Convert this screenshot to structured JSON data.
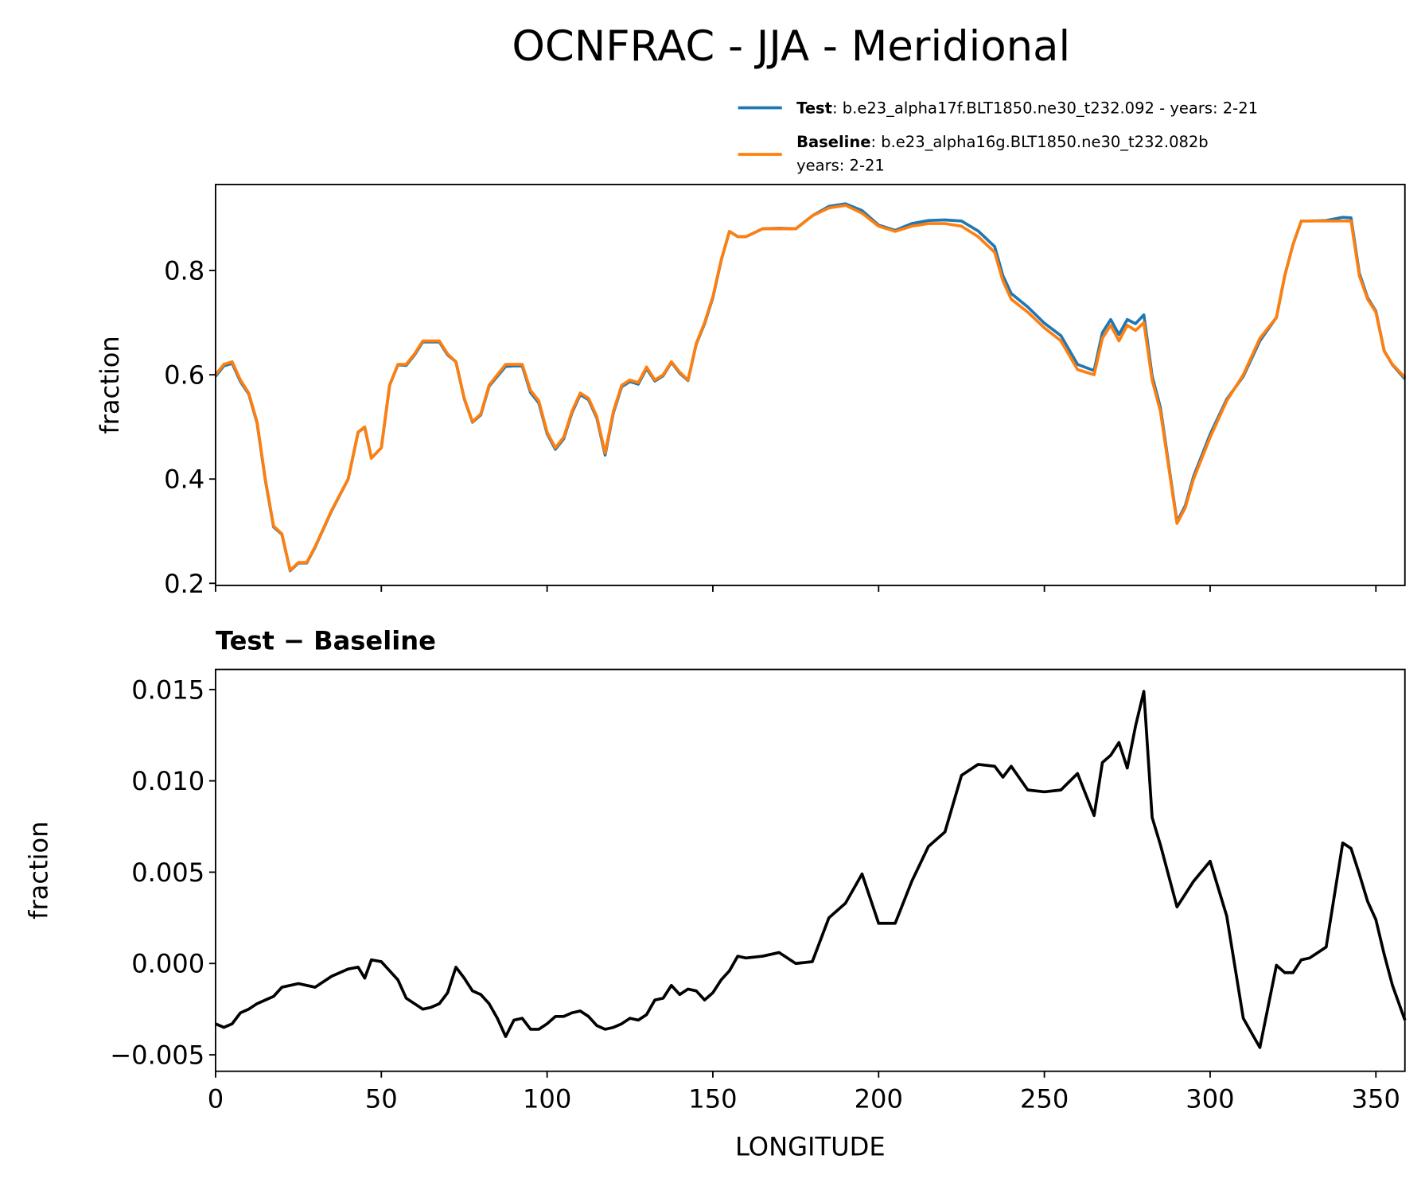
{
  "title": "OCNFRAC - JJA - Meridional",
  "chart_data": [
    {
      "type": "line",
      "ylabel": "fraction",
      "grid": false,
      "xlim": [
        0,
        358.75
      ],
      "xticks": [
        0,
        50,
        100,
        150,
        200,
        250,
        300,
        350
      ],
      "ylim": [
        0.196,
        0.965
      ],
      "yticks": [
        0.2,
        0.4,
        0.6,
        0.8
      ],
      "x": [
        0,
        2.5,
        5,
        7.5,
        10,
        12.5,
        15,
        17.5,
        20,
        22.5,
        25,
        27.5,
        30,
        35,
        40,
        43,
        45,
        47,
        50,
        52.5,
        55,
        57.5,
        60,
        62.5,
        65,
        67.5,
        70,
        72.5,
        75,
        77.5,
        80,
        82.5,
        85,
        87.5,
        90,
        92.5,
        95,
        97.5,
        100,
        102.5,
        105,
        107.5,
        110,
        112.5,
        115,
        117.5,
        120,
        122.5,
        125,
        127.5,
        130,
        132.5,
        135,
        137.5,
        140,
        142.5,
        145,
        147.5,
        150,
        152.5,
        155,
        157.5,
        160,
        165,
        170,
        175,
        180,
        185,
        190,
        195,
        200,
        205,
        210,
        215,
        220,
        225,
        230,
        235,
        237.5,
        240,
        245,
        250,
        255,
        260,
        265,
        267.5,
        270,
        272.5,
        275,
        277.5,
        280,
        282.5,
        285,
        290,
        292.5,
        295,
        300,
        305,
        310,
        315,
        320,
        322.5,
        325,
        327.5,
        330,
        335,
        340,
        342.5,
        345,
        347.5,
        350,
        352.5,
        355,
        358.75
      ],
      "series": [
        {
          "name": "Test",
          "description": [
            ": b.e23_alpha17f.BLT1850.ne30_t232.092 - years: 2-21"
          ],
          "color": "#1f77b4",
          "values": [
            0.597,
            0.617,
            0.622,
            0.587,
            0.563,
            0.508,
            0.398,
            0.308,
            0.294,
            0.224,
            0.239,
            0.239,
            0.269,
            0.339,
            0.4,
            0.49,
            0.499,
            0.44,
            0.46,
            0.58,
            0.619,
            0.618,
            0.638,
            0.663,
            0.663,
            0.663,
            0.638,
            0.625,
            0.554,
            0.509,
            0.523,
            0.578,
            0.597,
            0.616,
            0.617,
            0.617,
            0.566,
            0.546,
            0.487,
            0.457,
            0.477,
            0.527,
            0.562,
            0.552,
            0.517,
            0.446,
            0.527,
            0.577,
            0.587,
            0.582,
            0.612,
            0.588,
            0.598,
            0.624,
            0.603,
            0.589,
            0.659,
            0.698,
            0.748,
            0.819,
            0.875,
            0.865,
            0.865,
            0.88,
            0.881,
            0.88,
            0.905,
            0.923,
            0.928,
            0.915,
            0.887,
            0.877,
            0.89,
            0.896,
            0.897,
            0.895,
            0.876,
            0.846,
            0.79,
            0.756,
            0.73,
            0.699,
            0.675,
            0.62,
            0.608,
            0.681,
            0.706,
            0.677,
            0.706,
            0.698,
            0.715,
            0.598,
            0.537,
            0.318,
            0.349,
            0.405,
            0.486,
            0.553,
            0.597,
            0.665,
            0.71,
            0.79,
            0.85,
            0.895,
            0.895,
            0.896,
            0.902,
            0.901,
            0.795,
            0.748,
            0.722,
            0.646,
            0.619,
            0.592
          ]
        },
        {
          "name": "Baseline",
          "description": [
            ": b.e23_alpha16g.BLT1850.ne30_t232.082b",
            "years: 2-21"
          ],
          "color": "#ff7f0e",
          "values": [
            0.6,
            0.62,
            0.625,
            0.59,
            0.565,
            0.51,
            0.4,
            0.31,
            0.295,
            0.225,
            0.24,
            0.24,
            0.27,
            0.34,
            0.4,
            0.49,
            0.5,
            0.44,
            0.46,
            0.58,
            0.62,
            0.62,
            0.64,
            0.665,
            0.665,
            0.665,
            0.64,
            0.625,
            0.555,
            0.51,
            0.525,
            0.58,
            0.6,
            0.62,
            0.62,
            0.62,
            0.57,
            0.55,
            0.49,
            0.46,
            0.48,
            0.53,
            0.565,
            0.555,
            0.52,
            0.45,
            0.53,
            0.58,
            0.59,
            0.585,
            0.615,
            0.59,
            0.6,
            0.625,
            0.605,
            0.59,
            0.66,
            0.7,
            0.75,
            0.82,
            0.875,
            0.865,
            0.865,
            0.88,
            0.88,
            0.88,
            0.905,
            0.92,
            0.925,
            0.91,
            0.885,
            0.875,
            0.885,
            0.89,
            0.89,
            0.885,
            0.865,
            0.835,
            0.78,
            0.745,
            0.72,
            0.69,
            0.665,
            0.61,
            0.6,
            0.67,
            0.695,
            0.665,
            0.695,
            0.685,
            0.7,
            0.59,
            0.53,
            0.315,
            0.345,
            0.4,
            0.48,
            0.55,
            0.6,
            0.67,
            0.71,
            0.79,
            0.85,
            0.895,
            0.895,
            0.895,
            0.895,
            0.895,
            0.79,
            0.745,
            0.72,
            0.645,
            0.62,
            0.595
          ]
        }
      ]
    },
    {
      "type": "line",
      "title": "Test − Baseline",
      "ylabel": "fraction",
      "xlabel": "LONGITUDE",
      "grid": false,
      "xlim": [
        0,
        358.75
      ],
      "xticks": [
        0,
        50,
        100,
        150,
        200,
        250,
        300,
        350
      ],
      "ylim": [
        -0.0059,
        0.0161
      ],
      "yticks": [
        {
          "value": -0.005,
          "label": "−0.005"
        },
        {
          "value": 0,
          "label": "0.000"
        },
        {
          "value": 0.005,
          "label": "0.005"
        },
        {
          "value": 0.01,
          "label": "0.010"
        },
        {
          "value": 0.015,
          "label": "0.015"
        }
      ],
      "x": [
        0,
        2.5,
        5,
        7.5,
        10,
        12.5,
        15,
        17.5,
        20,
        22.5,
        25,
        27.5,
        30,
        35,
        40,
        43,
        45,
        47,
        50,
        52.5,
        55,
        57.5,
        60,
        62.5,
        65,
        67.5,
        70,
        72.5,
        75,
        77.5,
        80,
        82.5,
        85,
        87.5,
        90,
        92.5,
        95,
        97.5,
        100,
        102.5,
        105,
        107.5,
        110,
        112.5,
        115,
        117.5,
        120,
        122.5,
        125,
        127.5,
        130,
        132.5,
        135,
        137.5,
        140,
        142.5,
        145,
        147.5,
        150,
        152.5,
        155,
        157.5,
        160,
        165,
        170,
        175,
        180,
        185,
        190,
        195,
        200,
        205,
        210,
        215,
        220,
        225,
        230,
        235,
        237.5,
        240,
        245,
        250,
        255,
        260,
        265,
        267.5,
        270,
        272.5,
        275,
        277.5,
        280,
        282.5,
        285,
        290,
        292.5,
        295,
        300,
        305,
        310,
        315,
        320,
        322.5,
        325,
        327.5,
        330,
        335,
        340,
        342.5,
        345,
        347.5,
        350,
        352.5,
        355,
        358.75
      ],
      "series": [
        {
          "color": "#000000",
          "values": [
            -0.0033,
            -0.0035,
            -0.0033,
            -0.0027,
            -0.0025,
            -0.0022,
            -0.002,
            -0.0018,
            -0.0013,
            -0.0012,
            -0.0011,
            -0.0012,
            -0.0013,
            -0.0007,
            -0.0003,
            -0.0002,
            -0.0008,
            0.0002,
            0.0001,
            -0.0004,
            -0.0009,
            -0.0019,
            -0.0022,
            -0.0025,
            -0.0024,
            -0.0022,
            -0.0016,
            -0.0002,
            -0.0008,
            -0.0015,
            -0.0017,
            -0.0022,
            -0.003,
            -0.004,
            -0.0031,
            -0.003,
            -0.0036,
            -0.0036,
            -0.0033,
            -0.0029,
            -0.0029,
            -0.0027,
            -0.0026,
            -0.0029,
            -0.0034,
            -0.0036,
            -0.0035,
            -0.0033,
            -0.003,
            -0.0031,
            -0.0028,
            -0.002,
            -0.0019,
            -0.0012,
            -0.0017,
            -0.0014,
            -0.0015,
            -0.002,
            -0.0016,
            -0.0009,
            -0.0004,
            0.0004,
            0.0003,
            0.0004,
            0.0006,
            0,
            0.0001,
            0.0025,
            0.0033,
            0.0049,
            0.0022,
            0.0022,
            0.0045,
            0.0064,
            0.0072,
            0.0103,
            0.0109,
            0.0108,
            0.0102,
            0.0108,
            0.0095,
            0.0094,
            0.0095,
            0.0104,
            0.0081,
            0.011,
            0.0114,
            0.0121,
            0.0107,
            0.013,
            0.0149,
            0.008,
            0.0065,
            0.0031,
            0.0038,
            0.0045,
            0.0056,
            0.0026,
            -0.003,
            -0.0046,
            -0.0001,
            -0.0005,
            -0.0005,
            0.0002,
            0.0003,
            0.0009,
            0.0066,
            0.0063,
            0.0049,
            0.0034,
            0.0024,
            0.0005,
            -0.0012,
            -0.0031
          ]
        }
      ]
    }
  ]
}
